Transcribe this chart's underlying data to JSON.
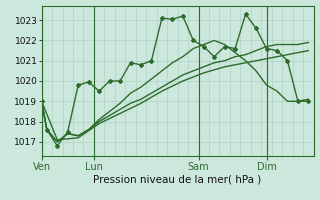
{
  "background_color": "#cce8dc",
  "grid_color": "#a8ccbc",
  "line_color": "#2d6b2d",
  "title": "Pression niveau de la mer( hPa )",
  "ylim": [
    1016.3,
    1023.7
  ],
  "yticks": [
    1017,
    1018,
    1019,
    1020,
    1021,
    1022,
    1023
  ],
  "day_labels": [
    "Ven",
    "Lun",
    "Sam",
    "Dim"
  ],
  "day_positions": [
    0,
    10,
    30,
    43
  ],
  "xmax": 52,
  "series": [
    {
      "x": [
        0,
        1,
        3,
        5,
        7,
        9,
        11,
        13,
        15,
        17,
        19,
        21,
        23,
        25,
        27,
        29,
        31,
        33,
        35,
        37,
        39,
        41,
        43,
        45,
        47,
        49,
        51
      ],
      "y": [
        1019.0,
        1017.6,
        1016.8,
        1017.5,
        1019.8,
        1019.95,
        1019.5,
        1020.0,
        1020.0,
        1020.9,
        1020.8,
        1021.0,
        1023.1,
        1023.05,
        1023.2,
        1022.0,
        1021.7,
        1021.2,
        1021.7,
        1021.6,
        1023.3,
        1022.6,
        1021.6,
        1021.5,
        1021.0,
        1019.0,
        1019.0
      ],
      "marker": "D",
      "markersize": 2.0,
      "lw": 1.0
    },
    {
      "x": [
        0,
        1,
        3,
        5,
        7,
        9,
        11,
        13,
        15,
        17,
        19,
        21,
        23,
        25,
        27,
        29,
        31,
        33,
        35,
        37,
        39,
        41,
        43,
        45,
        47,
        49,
        51
      ],
      "y": [
        1019.0,
        1017.6,
        1017.0,
        1017.4,
        1017.3,
        1017.6,
        1018.1,
        1018.5,
        1018.9,
        1019.4,
        1019.7,
        1020.1,
        1020.5,
        1020.9,
        1021.2,
        1021.6,
        1021.8,
        1022.0,
        1021.8,
        1021.4,
        1021.0,
        1020.5,
        1019.8,
        1019.5,
        1019.0,
        1019.0,
        1019.1
      ],
      "marker": null,
      "markersize": 0,
      "lw": 1.0
    },
    {
      "x": [
        0,
        1,
        3,
        5,
        7,
        9,
        11,
        13,
        15,
        17,
        19,
        21,
        23,
        25,
        27,
        29,
        31,
        33,
        35,
        37,
        39,
        41,
        43,
        45,
        47,
        49,
        51
      ],
      "y": [
        1019.0,
        1017.6,
        1017.0,
        1017.4,
        1017.3,
        1017.6,
        1018.0,
        1018.3,
        1018.6,
        1018.9,
        1019.1,
        1019.4,
        1019.7,
        1020.0,
        1020.3,
        1020.5,
        1020.7,
        1020.9,
        1021.0,
        1021.2,
        1021.3,
        1021.5,
        1021.7,
        1021.8,
        1021.8,
        1021.8,
        1021.9
      ],
      "marker": null,
      "markersize": 0,
      "lw": 1.0
    },
    {
      "x": [
        0,
        3,
        7,
        11,
        15,
        19,
        23,
        27,
        31,
        35,
        39,
        43,
        47,
        51
      ],
      "y": [
        1019.0,
        1017.1,
        1017.2,
        1017.9,
        1018.4,
        1018.9,
        1019.5,
        1020.0,
        1020.4,
        1020.7,
        1020.9,
        1021.1,
        1021.3,
        1021.5
      ],
      "marker": null,
      "markersize": 0,
      "lw": 1.0
    }
  ]
}
